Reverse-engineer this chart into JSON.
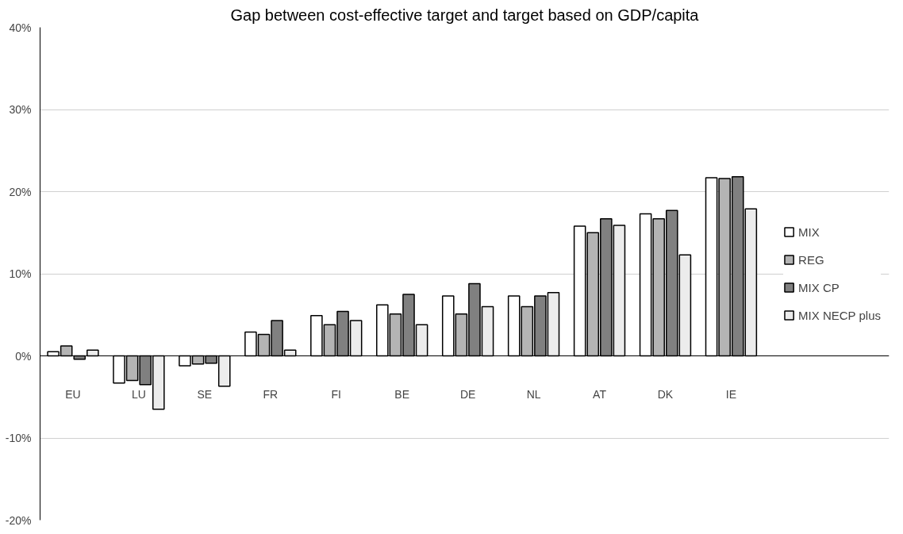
{
  "chart_data": {
    "type": "bar",
    "title": "Gap between cost-effective target and target based on GDP/capita",
    "categories": [
      "EU",
      "LU",
      "SE",
      "FR",
      "FI",
      "BE",
      "DE",
      "NL",
      "AT",
      "DK",
      "IE"
    ],
    "series": [
      {
        "name": "MIX",
        "color": "#ffffff",
        "values": [
          0.5,
          -3.3,
          -1.2,
          2.9,
          4.9,
          6.2,
          7.3,
          7.3,
          15.8,
          17.3,
          21.7
        ]
      },
      {
        "name": "REG",
        "color": "#b4b4b4",
        "values": [
          1.2,
          -3.0,
          -1.0,
          2.6,
          3.8,
          5.1,
          5.1,
          6.0,
          15.0,
          16.7,
          21.6
        ]
      },
      {
        "name": "MIX CP",
        "color": "#808080",
        "values": [
          -0.4,
          -3.5,
          -0.9,
          4.3,
          5.4,
          7.5,
          8.8,
          7.3,
          16.7,
          17.7,
          21.8
        ]
      },
      {
        "name": "MIX NECP plus",
        "color": "#ececec",
        "values": [
          0.7,
          -6.5,
          -3.7,
          0.7,
          4.3,
          3.8,
          6.0,
          7.7,
          15.9,
          12.3,
          17.9
        ]
      }
    ],
    "ylim": [
      -20,
      40
    ],
    "yticks": [
      {
        "value": -20,
        "label": "-20%"
      },
      {
        "value": -10,
        "label": "-10%"
      },
      {
        "value": 0,
        "label": "0%"
      },
      {
        "value": 10,
        "label": "10%"
      },
      {
        "value": 20,
        "label": "20%"
      },
      {
        "value": 30,
        "label": "30%"
      },
      {
        "value": 40,
        "label": "40%"
      }
    ],
    "grid": "y",
    "legend": "right"
  }
}
